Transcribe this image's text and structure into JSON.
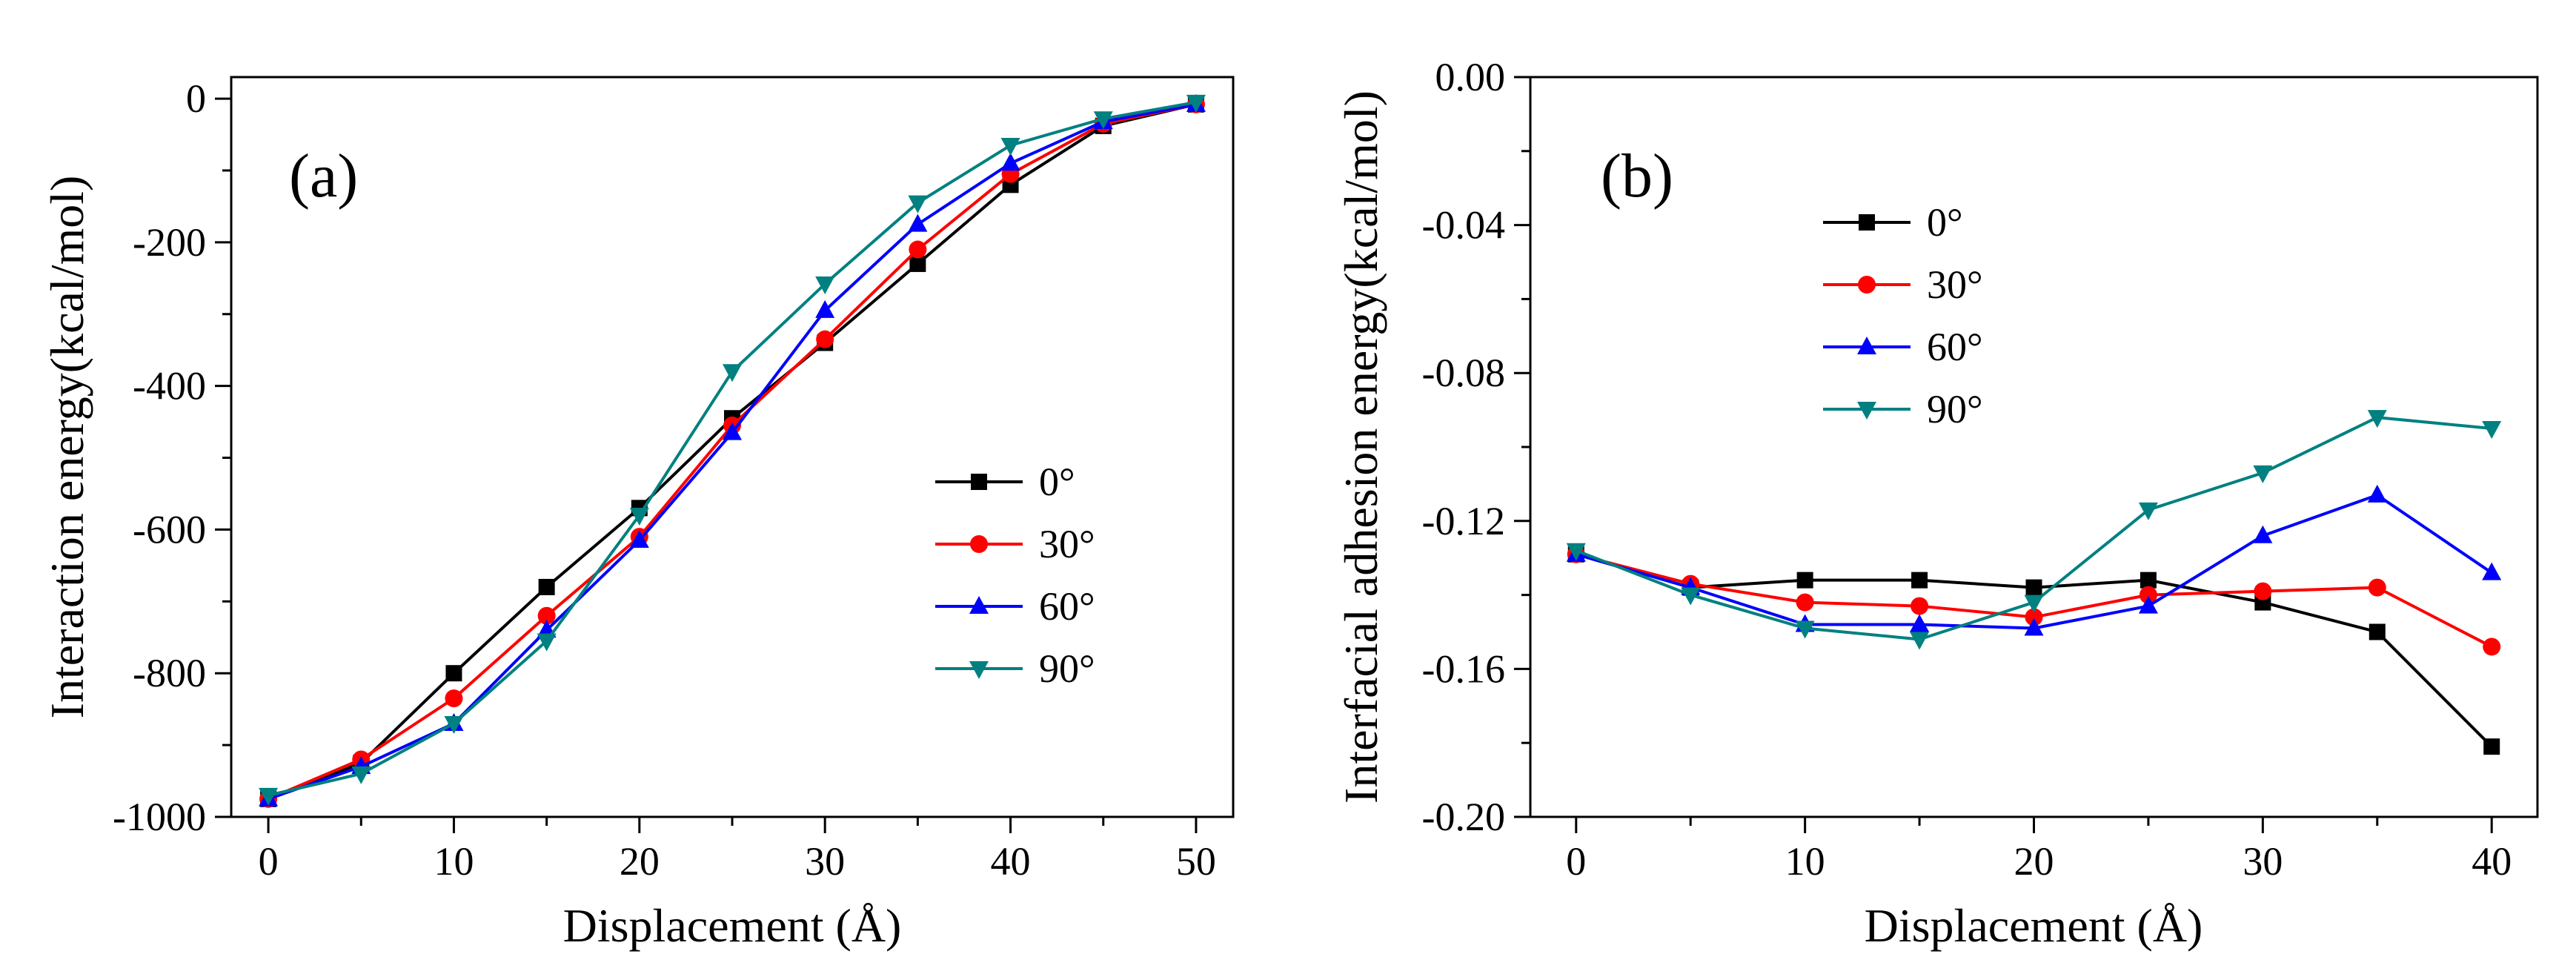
{
  "chart_data": [
    {
      "type": "line",
      "panel_label": "(a)",
      "xlabel": "Displacement (Å)",
      "ylabel": "Interaction energy(kcal/mol)",
      "xlim": [
        -2,
        52
      ],
      "ylim": [
        -1000,
        30
      ],
      "xticks": [
        0,
        10,
        20,
        30,
        40,
        50
      ],
      "xtick_labels": [
        "0",
        "10",
        "20",
        "30",
        "40",
        "50"
      ],
      "yticks": [
        -1000,
        -800,
        -600,
        -400,
        -200,
        0
      ],
      "ytick_labels": [
        "-1000",
        "-800",
        "-600",
        "-400",
        "-200",
        "0"
      ],
      "legend_position": "center-right",
      "x": [
        0,
        5,
        10,
        15,
        20,
        25,
        30,
        35,
        40,
        45,
        50
      ],
      "series": [
        {
          "name": "0°",
          "color": "#000000",
          "marker": "square",
          "values": [
            -975,
            -925,
            -800,
            -680,
            -570,
            -445,
            -340,
            -230,
            -120,
            -38,
            -8
          ]
        },
        {
          "name": "30°",
          "color": "#ff0000",
          "marker": "circle",
          "values": [
            -975,
            -920,
            -835,
            -720,
            -610,
            -455,
            -335,
            -210,
            -105,
            -35,
            -8
          ]
        },
        {
          "name": "60°",
          "color": "#0000ff",
          "marker": "triangle-up",
          "values": [
            -975,
            -930,
            -870,
            -740,
            -615,
            -465,
            -295,
            -175,
            -90,
            -32,
            -8
          ]
        },
        {
          "name": "90°",
          "color": "#008080",
          "marker": "triangle-down",
          "values": [
            -970,
            -940,
            -870,
            -755,
            -580,
            -380,
            -258,
            -145,
            -65,
            -28,
            -5
          ]
        }
      ]
    },
    {
      "type": "line",
      "panel_label": "(b)",
      "xlabel": "Displacement (Å)",
      "ylabel": "Interfacial adhesion energy(kcal/mol)",
      "xlim": [
        -2,
        42
      ],
      "ylim": [
        -0.2,
        0.0
      ],
      "xticks": [
        0,
        10,
        20,
        30,
        40
      ],
      "xtick_labels": [
        "0",
        "10",
        "20",
        "30",
        "40"
      ],
      "yticks": [
        -0.2,
        -0.16,
        -0.12,
        -0.08,
        -0.04,
        0.0
      ],
      "ytick_labels": [
        "-0.20",
        "-0.16",
        "-0.12",
        "-0.08",
        "-0.04",
        "0.00"
      ],
      "legend_position": "top-left",
      "x": [
        0,
        5,
        10,
        15,
        20,
        25,
        30,
        35,
        40
      ],
      "series": [
        {
          "name": "0°",
          "color": "#000000",
          "marker": "square",
          "values": [
            -0.129,
            -0.138,
            -0.136,
            -0.136,
            -0.138,
            -0.136,
            -0.142,
            -0.15,
            -0.181
          ]
        },
        {
          "name": "30°",
          "color": "#ff0000",
          "marker": "circle",
          "values": [
            -0.129,
            -0.137,
            -0.142,
            -0.143,
            -0.146,
            -0.14,
            -0.139,
            -0.138,
            -0.154
          ]
        },
        {
          "name": "60°",
          "color": "#0000ff",
          "marker": "triangle-up",
          "values": [
            -0.129,
            -0.138,
            -0.148,
            -0.148,
            -0.149,
            -0.143,
            -0.124,
            -0.113,
            -0.134
          ]
        },
        {
          "name": "90°",
          "color": "#008080",
          "marker": "triangle-down",
          "values": [
            -0.128,
            -0.14,
            -0.149,
            -0.152,
            -0.142,
            -0.117,
            -0.107,
            -0.092,
            -0.095
          ]
        }
      ]
    }
  ]
}
